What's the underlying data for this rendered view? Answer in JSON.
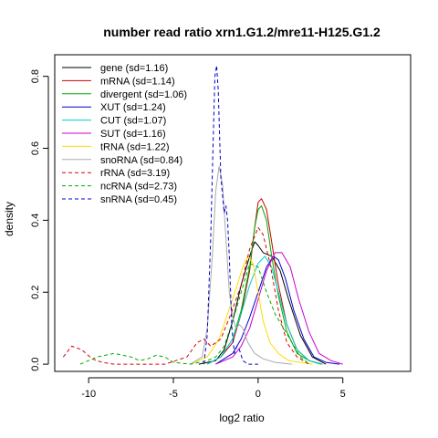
{
  "chart_data": {
    "type": "line",
    "title": "number read ratio xrn1.G1.2/mre11-H125.G1.2",
    "xlabel": "log2 ratio",
    "ylabel": "density",
    "xlim": [
      -12.0,
      9.0
    ],
    "ylim": [
      -0.02,
      0.86
    ],
    "x_ticks": [
      -10,
      -5,
      0,
      5
    ],
    "x_tick_labels": [
      "-10",
      "-5",
      "0",
      "5"
    ],
    "y_ticks": [
      0.0,
      0.2,
      0.4,
      0.6,
      0.8
    ],
    "y_tick_labels": [
      "0.0",
      "0.2",
      "0.4",
      "0.6",
      "0.8"
    ],
    "grid": false,
    "legend_position": "top-left",
    "series": [
      {
        "name": "gene (sd=1.16)",
        "color": "#000000",
        "dash": "solid",
        "x": [
          -3.5,
          -2.5,
          -2,
          -1.5,
          -1,
          -0.5,
          -0.2,
          0,
          0.3,
          0.8,
          1.3,
          1.8,
          2.5,
          3.2,
          4
        ],
        "y": [
          0,
          0.01,
          0.04,
          0.12,
          0.22,
          0.3,
          0.34,
          0.33,
          0.31,
          0.3,
          0.26,
          0.18,
          0.08,
          0.02,
          0
        ]
      },
      {
        "name": "mRNA (sd=1.14)",
        "color": "#cc0000",
        "dash": "solid",
        "x": [
          -3,
          -2.2,
          -1.5,
          -1,
          -0.5,
          -0.2,
          0,
          0.2,
          0.5,
          0.8,
          1.2,
          1.7,
          2.3,
          3,
          3.8
        ],
        "y": [
          0,
          0.02,
          0.06,
          0.14,
          0.26,
          0.38,
          0.45,
          0.46,
          0.43,
          0.34,
          0.22,
          0.11,
          0.04,
          0.01,
          0
        ]
      },
      {
        "name": "divergent (sd=1.06)",
        "color": "#00aa00",
        "dash": "solid",
        "x": [
          -3,
          -2.2,
          -1.5,
          -1,
          -0.5,
          -0.2,
          0,
          0.2,
          0.5,
          0.8,
          1.2,
          1.7,
          2.3,
          3,
          3.7
        ],
        "y": [
          0,
          0.02,
          0.07,
          0.15,
          0.27,
          0.38,
          0.43,
          0.44,
          0.4,
          0.3,
          0.19,
          0.09,
          0.03,
          0.01,
          0
        ]
      },
      {
        "name": "XUT (sd=1.24)",
        "color": "#0000cc",
        "dash": "solid",
        "x": [
          -2.5,
          -1.5,
          -1,
          -0.5,
          0,
          0.5,
          0.9,
          1.2,
          1.6,
          2.1,
          2.7,
          3.3,
          4,
          4.8
        ],
        "y": [
          0,
          0.03,
          0.07,
          0.13,
          0.2,
          0.27,
          0.3,
          0.29,
          0.24,
          0.15,
          0.07,
          0.02,
          0.005,
          0
        ]
      },
      {
        "name": "CUT (sd=1.07)",
        "color": "#00cccc",
        "dash": "solid",
        "x": [
          -3,
          -2.2,
          -1.5,
          -1,
          -0.5,
          0,
          0.4,
          0.8,
          1.2,
          1.7,
          2.3,
          3,
          3.8
        ],
        "y": [
          0,
          0.02,
          0.07,
          0.14,
          0.22,
          0.28,
          0.3,
          0.27,
          0.2,
          0.11,
          0.04,
          0.01,
          0
        ]
      },
      {
        "name": "SUT (sd=1.16)",
        "color": "#cc00cc",
        "dash": "solid",
        "x": [
          -2.5,
          -1.5,
          -1,
          -0.5,
          0,
          0.5,
          1,
          1.4,
          1.9,
          2.4,
          3,
          3.6,
          4.3,
          5
        ],
        "y": [
          0,
          0.02,
          0.05,
          0.1,
          0.18,
          0.26,
          0.31,
          0.31,
          0.27,
          0.18,
          0.09,
          0.03,
          0.01,
          0
        ]
      },
      {
        "name": "tRNA (sd=1.22)",
        "color": "#ffdd00",
        "dash": "solid",
        "x": [
          -4,
          -3,
          -2.3,
          -1.8,
          -1.3,
          -0.9,
          -0.6,
          -0.3,
          0,
          0.3,
          0.7,
          1.2,
          1.8,
          2.5,
          3.2
        ],
        "y": [
          0,
          0.02,
          0.07,
          0.14,
          0.21,
          0.27,
          0.3,
          0.28,
          0.2,
          0.12,
          0.06,
          0.03,
          0.01,
          0.005,
          0
        ]
      },
      {
        "name": "snoRNA (sd=0.84)",
        "color": "#aaaaaa",
        "dash": "solid",
        "x": [
          -4,
          -3.3,
          -3,
          -2.7,
          -2.5,
          -2.3,
          -2.1,
          -1.9,
          -1.7,
          -1.5,
          -1.3,
          -1.1,
          -0.9,
          -0.6,
          -0.2,
          0.3,
          1,
          2
        ],
        "y": [
          0,
          0.02,
          0.1,
          0.3,
          0.48,
          0.55,
          0.5,
          0.35,
          0.2,
          0.13,
          0.1,
          0.11,
          0.1,
          0.06,
          0.03,
          0.015,
          0.005,
          0
        ]
      },
      {
        "name": "rRNA (sd=3.19)",
        "color": "#dd0000",
        "dash": "dashed",
        "x": [
          -11.5,
          -11,
          -10.4,
          -9.8,
          -9.2,
          -8.5,
          -7,
          -5.5,
          -4.2,
          -3.6,
          -3.2,
          -2.8,
          -2.2,
          -1.6,
          -1,
          -0.5,
          0,
          0.3,
          0.7,
          1.2,
          1.7,
          2.3,
          3
        ],
        "y": [
          0.02,
          0.05,
          0.04,
          0.015,
          0.005,
          0,
          0,
          0,
          0.02,
          0.06,
          0.07,
          0.05,
          0.07,
          0.14,
          0.22,
          0.32,
          0.38,
          0.36,
          0.28,
          0.15,
          0.06,
          0.02,
          0
        ]
      },
      {
        "name": "ncRNA (sd=2.73)",
        "color": "#00aa00",
        "dash": "dashed",
        "x": [
          -10.5,
          -9.5,
          -8.5,
          -7.5,
          -7,
          -6.5,
          -6,
          -5.5,
          -5,
          -4,
          -3,
          -2.5,
          -2,
          -1.5,
          -1,
          -0.5,
          0,
          0.5,
          1,
          1.5,
          2,
          2.5,
          3
        ],
        "y": [
          0,
          0.02,
          0.03,
          0.02,
          0.01,
          0.015,
          0.025,
          0.02,
          0.005,
          0,
          0.01,
          0.02,
          0.05,
          0.12,
          0.2,
          0.28,
          0.27,
          0.2,
          0.14,
          0.1,
          0.06,
          0.02,
          0
        ]
      },
      {
        "name": "snRNA (sd=0.45)",
        "color": "#0000cc",
        "dash": "dashed",
        "x": [
          -3.2,
          -3,
          -2.8,
          -2.65,
          -2.55,
          -2.45,
          -2.35,
          -2.2,
          -2,
          -1.9,
          -1.8,
          -1.7,
          -1.55,
          -1.4,
          -1.25,
          -1.1,
          -0.9,
          -0.6,
          0
        ],
        "y": [
          0,
          0.08,
          0.35,
          0.62,
          0.8,
          0.83,
          0.76,
          0.52,
          0.42,
          0.44,
          0.4,
          0.3,
          0.1,
          0.03,
          0.05,
          0.04,
          0.01,
          0,
          0
        ]
      }
    ]
  }
}
